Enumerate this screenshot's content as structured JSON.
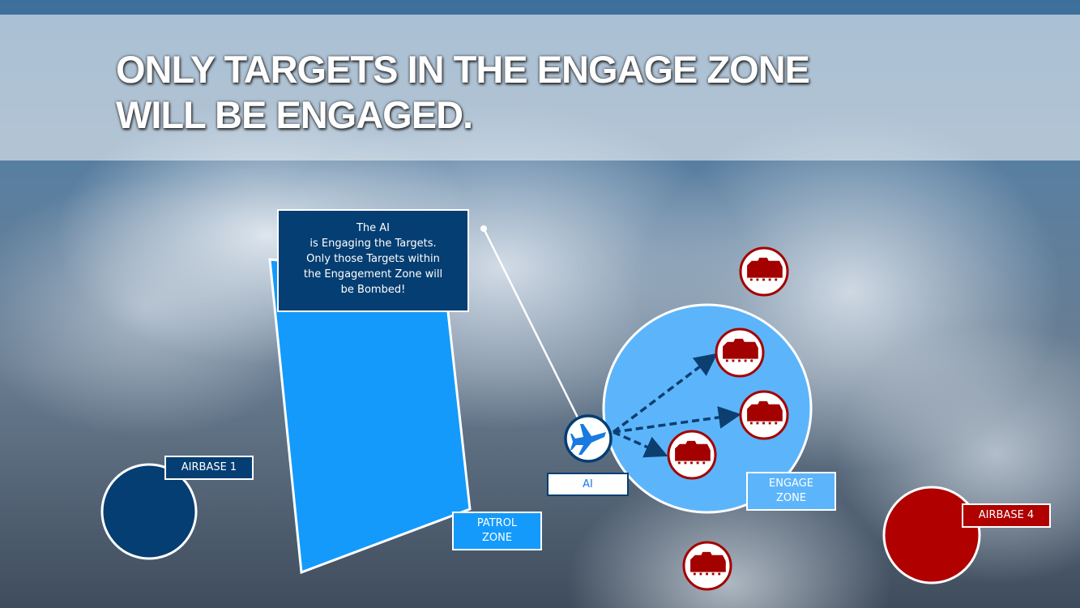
{
  "title": {
    "line1": "ONLY TARGETS IN THE ENGAGE ZONE",
    "line2": "WILL BE ENGAGED."
  },
  "callout": {
    "lines": [
      "The AI",
      "is Engaging the Targets.",
      "Only those Targets within",
      "the Engagement Zone will",
      "be Bombed!"
    ]
  },
  "labels": {
    "airbase1": "AIRBASE 1",
    "patrol_zone": [
      "PATROL",
      "ZONE"
    ],
    "ai": "AI",
    "engage_zone": [
      "ENGAGE",
      "ZONE"
    ],
    "airbase4": "AIRBASE 4"
  },
  "icons": {
    "aircraft": "fighter-jet-icon",
    "target": "armored-vehicle-icon"
  },
  "colors": {
    "airbase1": "#043e72",
    "patrol_zone": "#149afb",
    "engage_zone": "#5cb5fb",
    "airbase4": "#b00000",
    "target": "#a30000",
    "arrow": "#0c3f70"
  }
}
